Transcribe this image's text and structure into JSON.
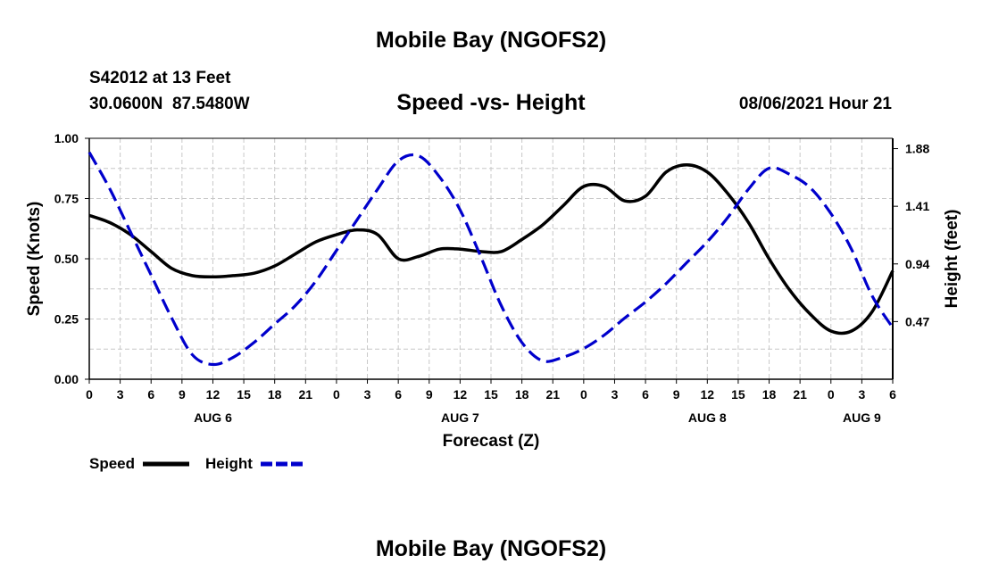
{
  "page": {
    "top_title": "Mobile Bay (NGOFS2)",
    "bottom_title": "Mobile Bay (NGOFS2)",
    "station_line": "S42012 at 13 Feet",
    "coords_line": "30.0600N  87.5480W",
    "run_time": "08/06/2021 Hour 21"
  },
  "chart_data": {
    "type": "line",
    "title": "Speed -vs- Height",
    "xlabel": "Forecast (Z)",
    "ylabel_left": "Speed (Knots)",
    "ylabel_right": "Height (feet)",
    "x_range_hours": [
      0,
      78
    ],
    "ylim_left": [
      0,
      1.0
    ],
    "ylim_right": [
      0.0,
      1.964
    ],
    "x_tick_hours": [
      0,
      3,
      6,
      9,
      12,
      15,
      18,
      21,
      24,
      27,
      30,
      33,
      36,
      39,
      42,
      45,
      48,
      51,
      54,
      57,
      60,
      63,
      66,
      69,
      72,
      75,
      78
    ],
    "x_tick_labels": [
      "0",
      "3",
      "6",
      "9",
      "12",
      "15",
      "18",
      "21",
      "0",
      "3",
      "6",
      "9",
      "12",
      "15",
      "18",
      "21",
      "0",
      "3",
      "6",
      "9",
      "12",
      "15",
      "18",
      "21",
      "0",
      "3",
      "6"
    ],
    "day_labels": [
      {
        "hour": 12,
        "label": "AUG 6"
      },
      {
        "hour": 36,
        "label": "AUG 7"
      },
      {
        "hour": 60,
        "label": "AUG 8"
      },
      {
        "hour": 75,
        "label": "AUG 9"
      }
    ],
    "y_left_ticks": [
      0,
      0.25,
      0.5,
      0.75,
      1.0
    ],
    "y_left_tick_labels": [
      "0.00",
      "0.25",
      "0.50",
      "0.75",
      "1.00"
    ],
    "y_right_ticks": [
      0.47,
      0.94,
      1.41,
      1.88
    ],
    "y_right_tick_labels": [
      "0.47",
      "0.94",
      "1.41",
      "1.88"
    ],
    "grid": true,
    "series": [
      {
        "name": "Speed",
        "axis": "left",
        "color": "#000000",
        "dashed": false,
        "x": [
          0,
          2,
          4,
          6,
          8,
          10,
          12,
          14,
          16,
          18,
          20,
          22,
          24,
          26,
          28,
          30,
          32,
          34,
          36,
          38,
          40,
          42,
          44,
          46,
          48,
          50,
          52,
          54,
          56,
          58,
          60,
          62,
          64,
          66,
          68,
          70,
          72,
          74,
          76,
          78
        ],
        "values": [
          0.68,
          0.65,
          0.6,
          0.53,
          0.46,
          0.43,
          0.425,
          0.43,
          0.44,
          0.47,
          0.52,
          0.57,
          0.6,
          0.62,
          0.6,
          0.5,
          0.51,
          0.54,
          0.54,
          0.53,
          0.53,
          0.58,
          0.64,
          0.72,
          0.8,
          0.8,
          0.74,
          0.76,
          0.86,
          0.89,
          0.86,
          0.77,
          0.65,
          0.5,
          0.37,
          0.27,
          0.2,
          0.2,
          0.28,
          0.45
        ]
      },
      {
        "name": "Height",
        "axis": "right",
        "color": "#0000cc",
        "dashed": true,
        "x": [
          0,
          2,
          4,
          6,
          8,
          10,
          12,
          14,
          16,
          18,
          20,
          22,
          24,
          26,
          28,
          30,
          32,
          34,
          36,
          38,
          40,
          42,
          44,
          46,
          48,
          50,
          52,
          54,
          56,
          58,
          60,
          62,
          64,
          66,
          68,
          70,
          72,
          74,
          76,
          78
        ],
        "values": [
          1.85,
          1.55,
          1.2,
          0.85,
          0.5,
          0.2,
          0.12,
          0.18,
          0.3,
          0.45,
          0.6,
          0.8,
          1.05,
          1.3,
          1.55,
          1.78,
          1.82,
          1.65,
          1.38,
          1.0,
          0.6,
          0.3,
          0.15,
          0.18,
          0.25,
          0.36,
          0.5,
          0.63,
          0.78,
          0.95,
          1.12,
          1.32,
          1.55,
          1.72,
          1.67,
          1.56,
          1.35,
          1.06,
          0.68,
          0.42
        ]
      }
    ],
    "legend": [
      {
        "label": "Speed",
        "color": "#000000",
        "dashed": false
      },
      {
        "label": "Height",
        "color": "#0000cc",
        "dashed": true
      }
    ]
  }
}
